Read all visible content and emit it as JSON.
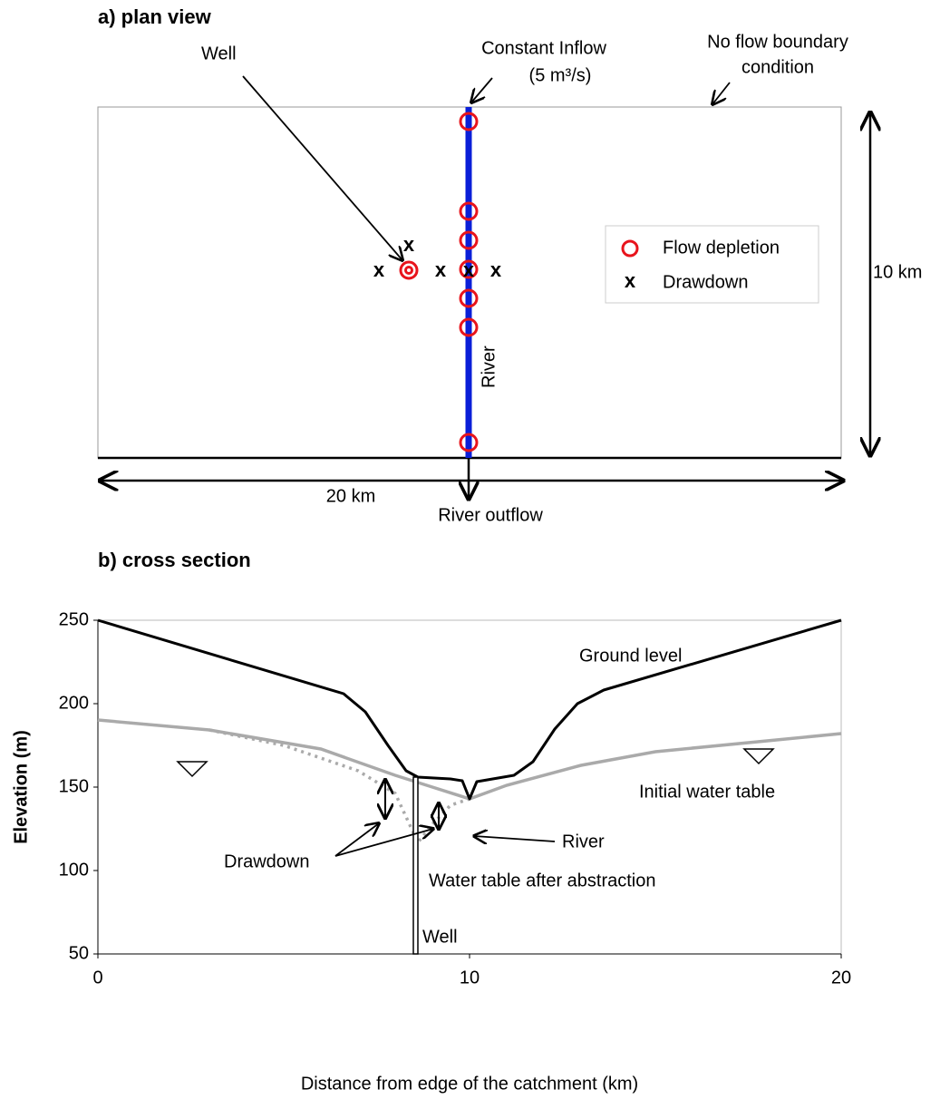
{
  "plan_view": {
    "title": "a) plan view",
    "well_label": "Well",
    "inflow_label": "Constant Inflow",
    "inflow_rate": "(5 m³/s)",
    "boundary_label_1": "No flow boundary",
    "boundary_label_2": "condition",
    "river_label": "River",
    "height_label": "10 km",
    "width_label": "20 km",
    "outflow_label": "River outflow",
    "legend": {
      "flow_depletion": "Flow depletion",
      "drawdown_marker": "x",
      "drawdown": "Drawdown"
    },
    "x_marker": "x"
  },
  "cross_section": {
    "title": "b) cross section",
    "x_axis_label": "Distance from edge of the catchment (km)",
    "y_axis_label": "Elevation (m)",
    "xticks": [
      0,
      10,
      20
    ],
    "yticks": [
      50,
      100,
      150,
      200,
      250
    ],
    "ground_label": "Ground level",
    "initial_label": "Initial water table",
    "river_label": "River",
    "drawdown_label": "Drawdown",
    "after_label": "Water table after abstraction",
    "well_label": "Well"
  }
}
